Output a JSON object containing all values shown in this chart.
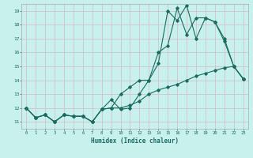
{
  "xlabel": "Humidex (Indice chaleur)",
  "background_color": "#c8f0ec",
  "grid_color": "#d4b8c8",
  "line_color": "#1a6b60",
  "xlim": [
    -0.5,
    23.5
  ],
  "ylim": [
    10.5,
    19.5
  ],
  "series1_x": [
    0,
    1,
    2,
    3,
    4,
    5,
    6,
    7,
    8,
    9,
    10,
    11,
    12,
    13,
    14,
    15,
    16,
    17,
    18,
    19,
    20,
    21,
    22,
    23
  ],
  "series1_y": [
    12,
    11.3,
    11.5,
    11.0,
    11.5,
    11.4,
    11.4,
    11.0,
    11.9,
    12.6,
    11.9,
    12.0,
    13.0,
    14.0,
    15.2,
    19.0,
    18.3,
    19.4,
    17.0,
    18.5,
    18.2,
    16.8,
    15.0,
    14.1
  ],
  "series2_x": [
    0,
    1,
    2,
    3,
    4,
    5,
    6,
    7,
    8,
    9,
    10,
    11,
    12,
    13,
    14,
    15,
    16,
    17,
    18,
    19,
    20,
    21,
    22,
    23
  ],
  "series2_y": [
    12,
    11.3,
    11.5,
    11.0,
    11.5,
    11.4,
    11.4,
    11.0,
    11.9,
    12.0,
    13.0,
    13.5,
    14.0,
    14.0,
    16.0,
    16.5,
    19.2,
    17.3,
    18.5,
    18.5,
    18.2,
    17.0,
    15.0,
    14.1
  ],
  "series3_x": [
    0,
    1,
    2,
    3,
    4,
    5,
    6,
    7,
    8,
    9,
    10,
    11,
    12,
    13,
    14,
    15,
    16,
    17,
    18,
    19,
    20,
    21,
    22,
    23
  ],
  "series3_y": [
    12,
    11.3,
    11.5,
    11.0,
    11.5,
    11.4,
    11.4,
    11.0,
    11.9,
    12.0,
    12.0,
    12.2,
    12.5,
    13.0,
    13.3,
    13.5,
    13.7,
    14.0,
    14.3,
    14.5,
    14.7,
    14.9,
    15.0,
    14.1
  ]
}
